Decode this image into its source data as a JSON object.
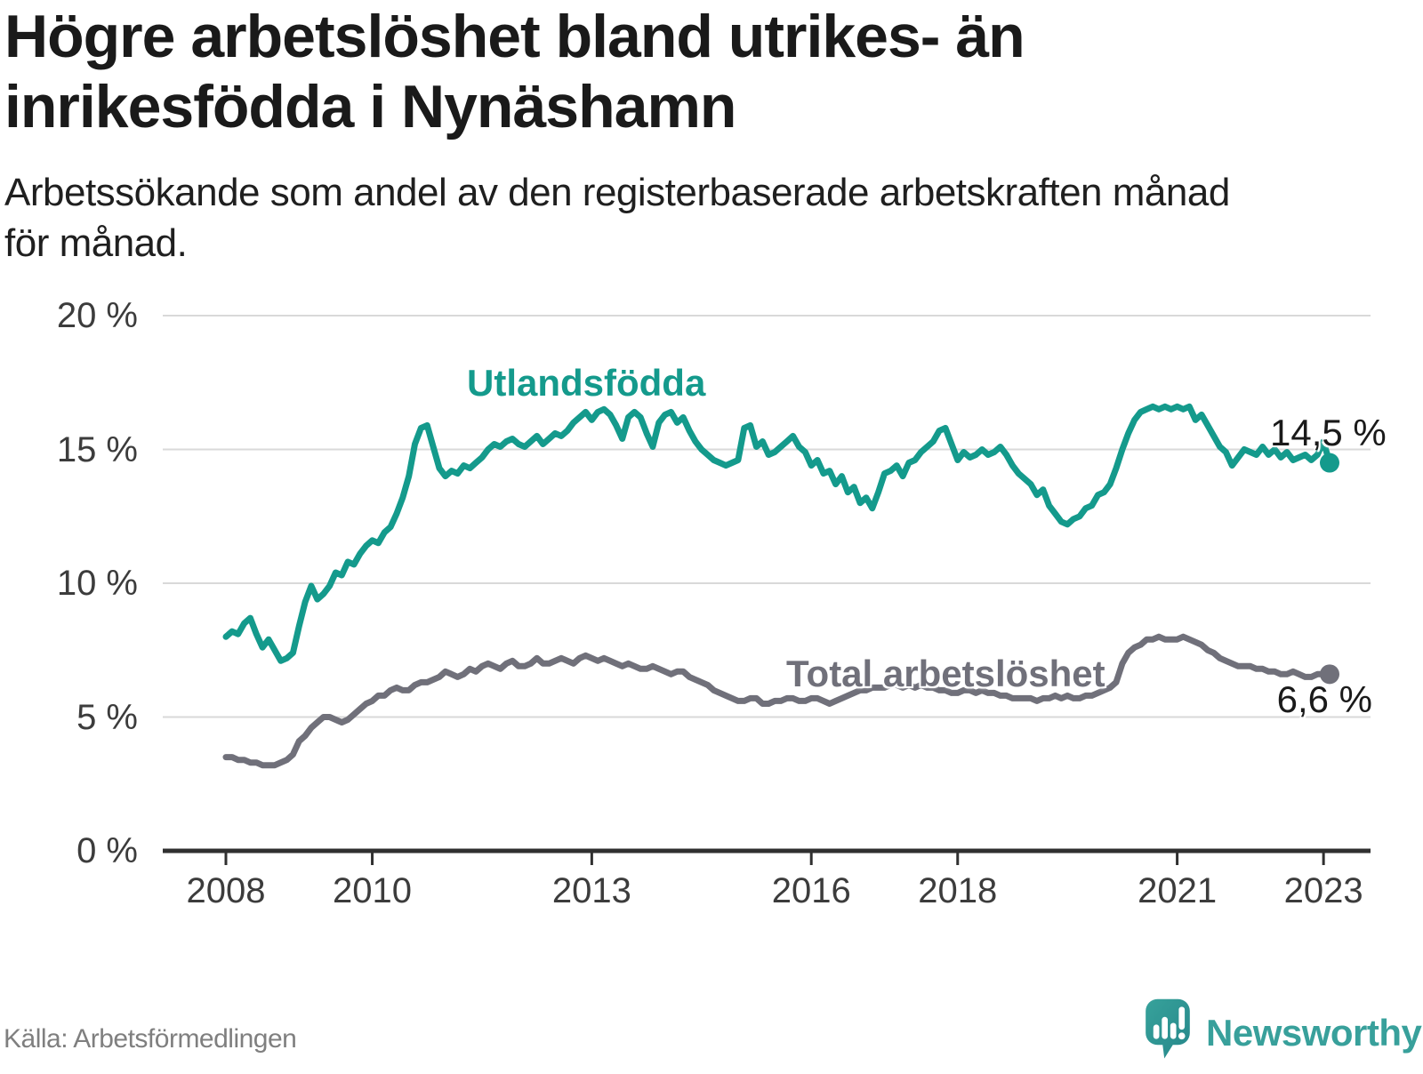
{
  "title": {
    "line1": "Högre arbetslöshet bland utrikes- än",
    "line2": "inrikesfödda i Nynäshamn",
    "full": "Högre arbetslöshet bland utrikes- än inrikesfödda i Nynäshamn"
  },
  "subtitle": {
    "line1": "Arbetssökande som andel av den registerbaserade arbetskraften månad",
    "line2": "för månad.",
    "full": "Arbetssökande som andel av den registerbaserade arbetskraften månad för månad."
  },
  "source": "Källa: Arbetsförmedlingen",
  "branding": {
    "name": "Newsworthy",
    "logo_icon": "speech-bubble-bar-chart-exclamation-icon",
    "color": "#38a09b"
  },
  "colors": {
    "foreign_born_line": "#149a8c",
    "total_line": "#70707a",
    "gridline": "#d9d9d9",
    "axis": "#303030",
    "tick_text": "#3c3c3c",
    "title_text": "#1a1a1a"
  },
  "chart_data": {
    "type": "line",
    "title": "Högre arbetslöshet bland utrikes- än inrikesfödda i Nynäshamn",
    "xlabel": "",
    "ylabel": "",
    "x_unit": "month",
    "x_start": "2008-01",
    "x_end": "2023-02",
    "ylim": [
      0,
      20
    ],
    "grid": "horizontal",
    "legend_position": "inline-labels",
    "x_ticks": [
      2008,
      2010,
      2013,
      2016,
      2018,
      2021,
      2023
    ],
    "y_ticks": [
      "0 %",
      "5 %",
      "10 %",
      "15 %",
      "20 %"
    ],
    "y_tick_values": [
      0,
      5,
      10,
      15,
      20
    ],
    "series": [
      {
        "name": "Utlandsfödda",
        "color": "#149a8c",
        "end_label": "14,5 %",
        "end_value": 14.5,
        "end_dot": true,
        "values": [
          8.0,
          8.2,
          8.1,
          8.5,
          8.7,
          8.1,
          7.6,
          7.9,
          7.5,
          7.1,
          7.2,
          7.4,
          8.4,
          9.3,
          9.9,
          9.4,
          9.6,
          9.9,
          10.4,
          10.3,
          10.8,
          10.7,
          11.1,
          11.4,
          11.6,
          11.5,
          11.9,
          12.1,
          12.6,
          13.2,
          14.0,
          15.2,
          15.8,
          15.9,
          15.1,
          14.3,
          14.0,
          14.2,
          14.1,
          14.4,
          14.3,
          14.5,
          14.7,
          15.0,
          15.2,
          15.1,
          15.3,
          15.4,
          15.2,
          15.1,
          15.3,
          15.5,
          15.2,
          15.4,
          15.6,
          15.5,
          15.7,
          16.0,
          16.2,
          16.4,
          16.1,
          16.4,
          16.5,
          16.3,
          15.9,
          15.4,
          16.2,
          16.4,
          16.2,
          15.6,
          15.1,
          16.0,
          16.3,
          16.4,
          16.0,
          16.2,
          15.7,
          15.3,
          15.0,
          14.8,
          14.6,
          14.5,
          14.4,
          14.5,
          14.6,
          15.8,
          15.9,
          15.1,
          15.3,
          14.8,
          14.9,
          15.1,
          15.3,
          15.5,
          15.1,
          14.9,
          14.4,
          14.6,
          14.1,
          14.2,
          13.7,
          14.0,
          13.4,
          13.6,
          13.0,
          13.2,
          12.8,
          13.4,
          14.1,
          14.2,
          14.4,
          14.0,
          14.5,
          14.6,
          14.9,
          15.1,
          15.3,
          15.7,
          15.8,
          15.2,
          14.6,
          14.9,
          14.7,
          14.8,
          15.0,
          14.8,
          14.9,
          15.1,
          14.8,
          14.4,
          14.1,
          13.9,
          13.7,
          13.3,
          13.5,
          12.9,
          12.6,
          12.3,
          12.2,
          12.4,
          12.5,
          12.8,
          12.9,
          13.3,
          13.4,
          13.7,
          14.3,
          15.0,
          15.6,
          16.1,
          16.4,
          16.5,
          16.6,
          16.5,
          16.6,
          16.5,
          16.6,
          16.5,
          16.6,
          16.1,
          16.3,
          15.9,
          15.5,
          15.1,
          14.9,
          14.4,
          14.7,
          15.0,
          14.9,
          14.8,
          15.1,
          14.8,
          15.0,
          14.7,
          14.9,
          14.6,
          14.7,
          14.8,
          14.6,
          14.8,
          15.3,
          14.5
        ]
      },
      {
        "name": "Total arbetslöshet",
        "color": "#70707a",
        "end_label": "6,6 %",
        "end_value": 6.6,
        "end_dot": true,
        "values": [
          3.5,
          3.5,
          3.4,
          3.4,
          3.3,
          3.3,
          3.2,
          3.2,
          3.2,
          3.3,
          3.4,
          3.6,
          4.1,
          4.3,
          4.6,
          4.8,
          5.0,
          5.0,
          4.9,
          4.8,
          4.9,
          5.1,
          5.3,
          5.5,
          5.6,
          5.8,
          5.8,
          6.0,
          6.1,
          6.0,
          6.0,
          6.2,
          6.3,
          6.3,
          6.4,
          6.5,
          6.7,
          6.6,
          6.5,
          6.6,
          6.8,
          6.7,
          6.9,
          7.0,
          6.9,
          6.8,
          7.0,
          7.1,
          6.9,
          6.9,
          7.0,
          7.2,
          7.0,
          7.0,
          7.1,
          7.2,
          7.1,
          7.0,
          7.2,
          7.3,
          7.2,
          7.1,
          7.2,
          7.1,
          7.0,
          6.9,
          7.0,
          6.9,
          6.8,
          6.8,
          6.9,
          6.8,
          6.7,
          6.6,
          6.7,
          6.7,
          6.5,
          6.4,
          6.3,
          6.2,
          6.0,
          5.9,
          5.8,
          5.7,
          5.6,
          5.6,
          5.7,
          5.7,
          5.5,
          5.5,
          5.6,
          5.6,
          5.7,
          5.7,
          5.6,
          5.6,
          5.7,
          5.7,
          5.6,
          5.5,
          5.6,
          5.7,
          5.8,
          5.9,
          6.0,
          6.0,
          6.1,
          6.1,
          6.1,
          6.2,
          6.2,
          6.1,
          6.2,
          6.1,
          6.2,
          6.1,
          6.1,
          6.0,
          6.0,
          5.9,
          5.9,
          6.0,
          6.0,
          5.9,
          6.0,
          5.9,
          5.9,
          5.8,
          5.8,
          5.7,
          5.7,
          5.7,
          5.7,
          5.6,
          5.7,
          5.7,
          5.8,
          5.7,
          5.8,
          5.7,
          5.7,
          5.8,
          5.8,
          5.9,
          6.0,
          6.1,
          6.3,
          7.0,
          7.4,
          7.6,
          7.7,
          7.9,
          7.9,
          8.0,
          7.9,
          7.9,
          7.9,
          8.0,
          7.9,
          7.8,
          7.7,
          7.5,
          7.4,
          7.2,
          7.1,
          7.0,
          6.9,
          6.9,
          6.9,
          6.8,
          6.8,
          6.7,
          6.7,
          6.6,
          6.6,
          6.7,
          6.6,
          6.5,
          6.5,
          6.6,
          6.6,
          6.6
        ]
      }
    ]
  }
}
